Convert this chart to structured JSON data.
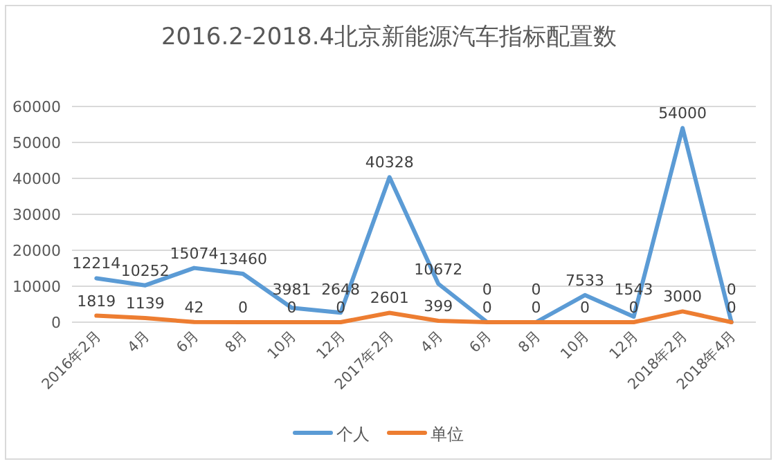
{
  "chart_data": {
    "type": "line",
    "title": "2016.2-2018.4北京新能源汽车指标配置数",
    "categories": [
      "2016年2月",
      "4月",
      "6月",
      "8月",
      "10月",
      "12月",
      "2017年2月",
      "4月",
      "6月",
      "8月",
      "10月",
      "12月",
      "2018年2月",
      "2018年4月"
    ],
    "series": [
      {
        "name": "个人",
        "color": "#5b9bd5",
        "values": [
          12214,
          10252,
          15074,
          13460,
          3981,
          2648,
          40328,
          10672,
          0,
          0,
          7533,
          1543,
          54000,
          0
        ]
      },
      {
        "name": "单位",
        "color": "#ed7d31",
        "values": [
          1819,
          1139,
          42,
          0,
          0,
          0,
          2601,
          399,
          0,
          0,
          0,
          0,
          3000,
          0
        ]
      }
    ],
    "ylim": [
      0,
      60000
    ],
    "yticks": [
      0,
      10000,
      20000,
      30000,
      40000,
      50000,
      60000
    ],
    "grid": "y",
    "legend": "bottom",
    "data_labels": true,
    "marker": "none",
    "line_style": "solid"
  }
}
